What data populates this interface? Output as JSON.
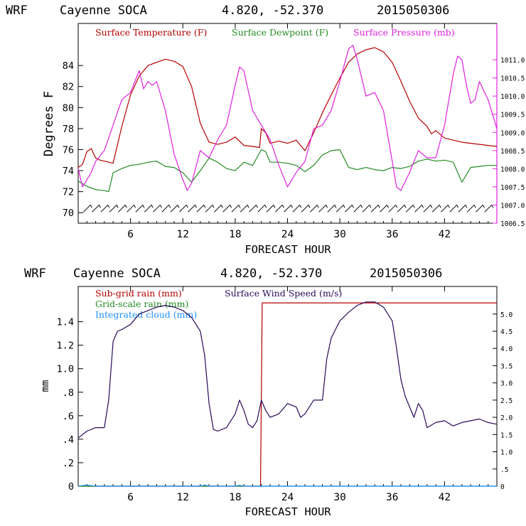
{
  "colors": {
    "temperature": "#b40000",
    "dewpoint": "#228b22",
    "pressure": "#e020e0",
    "subgrid_rain": "#b40000",
    "gridscale_rain": "#228b22",
    "integrated_cloud": "#1e90ff",
    "wind_speed": "#2a0a5a",
    "axis": "#000000"
  },
  "chart_data": [
    {
      "type": "line",
      "header": {
        "model": "WRF",
        "station": "Cayenne SOCA",
        "coords": "4.820, -52.370",
        "run": "2015050306"
      },
      "xlabel": "FORECAST HOUR",
      "ylabel": "Degrees F",
      "xlim": [
        0,
        48
      ],
      "ylim": [
        69,
        88
      ],
      "y2lim": [
        1006.5,
        1012.0
      ],
      "x_ticks": [
        6,
        12,
        18,
        24,
        30,
        36,
        42
      ],
      "x_tick_labels": [
        "6",
        "12",
        "18",
        "24",
        "30",
        "36",
        "42"
      ],
      "y_ticks": [
        70,
        72,
        74,
        76,
        78,
        80,
        82,
        84
      ],
      "y_tick_labels": [
        "70",
        "72",
        "74",
        "76",
        "78",
        "80",
        "82",
        "84"
      ],
      "y2_ticks": [
        1006.5,
        1007.0,
        1007.5,
        1008.0,
        1008.5,
        1009.0,
        1009.5,
        1010.0,
        1010.5,
        1011.0
      ],
      "y2_tick_labels": [
        "1006.5",
        "1007.0",
        "1007.5",
        "1008.0",
        "1008.5",
        "1009.0",
        "1009.5",
        "1010.0",
        "1010.5",
        "1011.0"
      ],
      "legend": [
        {
          "label": "Surface Temperature (F)",
          "color_key": "temperature"
        },
        {
          "label": "Surface Dewpoint (F)",
          "color_key": "dewpoint"
        },
        {
          "label": "Surface Pressure (mb)",
          "color_key": "pressure"
        }
      ],
      "series": [
        {
          "name": "Surface Temperature (F)",
          "axis": "left",
          "color_key": "temperature",
          "x": [
            0,
            0.5,
            1,
            1.5,
            2,
            2.5,
            3,
            4,
            5,
            6,
            7,
            8,
            9,
            10,
            11,
            12,
            13,
            14,
            15,
            16,
            17,
            18,
            19,
            20,
            20.8,
            21,
            21.5,
            22,
            23,
            24,
            25,
            26,
            27,
            28,
            29,
            30,
            31,
            32,
            33,
            34,
            35,
            36,
            37,
            38,
            39,
            40,
            40.5,
            41,
            42,
            43,
            44,
            45,
            46,
            47,
            48
          ],
          "y": [
            74.3,
            74.6,
            75.8,
            76.1,
            75.2,
            75.0,
            74.9,
            74.7,
            78.2,
            81.2,
            83.0,
            84.0,
            84.3,
            84.6,
            84.4,
            83.9,
            82.0,
            78.5,
            76.7,
            76.5,
            76.7,
            77.2,
            76.4,
            76.3,
            76.2,
            78.0,
            77.6,
            76.6,
            76.8,
            76.6,
            76.9,
            75.9,
            77.6,
            79.5,
            81.2,
            82.8,
            84.3,
            85.1,
            85.5,
            85.7,
            85.3,
            84.3,
            82.5,
            80.6,
            79.0,
            78.2,
            77.5,
            77.8,
            77.1,
            76.9,
            76.7,
            76.6,
            76.5,
            76.4,
            76.3
          ]
        },
        {
          "name": "Surface Dewpoint (F)",
          "axis": "left",
          "color_key": "dewpoint",
          "x": [
            0,
            1,
            2,
            3,
            3.5,
            4,
            5,
            6,
            7,
            8,
            9,
            10,
            11,
            12,
            13,
            14,
            15,
            16,
            17,
            18,
            19,
            20,
            21,
            21.5,
            22,
            23,
            24,
            25,
            26,
            27,
            28,
            29,
            30,
            31,
            32,
            33,
            34,
            35,
            36,
            37,
            38,
            39,
            40,
            41,
            42,
            43,
            44,
            45,
            46,
            47,
            48
          ],
          "y": [
            73.0,
            72.5,
            72.2,
            72.1,
            72.0,
            73.8,
            74.2,
            74.5,
            74.6,
            74.8,
            74.9,
            74.4,
            74.3,
            73.8,
            72.9,
            74.0,
            75.2,
            74.8,
            74.2,
            74.0,
            74.8,
            74.5,
            76.0,
            75.8,
            74.8,
            74.8,
            74.7,
            74.5,
            73.9,
            74.5,
            75.5,
            75.9,
            76.0,
            74.3,
            74.1,
            74.3,
            74.1,
            74.0,
            74.3,
            74.2,
            74.4,
            74.9,
            75.1,
            74.9,
            75.0,
            74.8,
            72.9,
            74.3,
            74.4,
            74.5,
            74.5
          ]
        },
        {
          "name": "Surface Pressure (mb)",
          "axis": "right",
          "color_key": "pressure",
          "x": [
            0,
            0.5,
            1,
            1.5,
            2,
            3,
            4,
            5,
            6,
            7,
            7.5,
            8,
            8.5,
            9,
            10,
            11,
            12,
            12.5,
            13,
            14,
            15,
            16,
            17,
            18,
            18.5,
            19,
            20,
            21,
            22,
            23,
            24,
            25,
            26,
            27,
            28,
            29,
            29.5,
            30,
            31,
            31.5,
            32,
            33,
            34,
            35,
            36,
            36.5,
            37,
            38,
            39,
            40,
            41,
            42,
            43,
            43.5,
            44,
            44.5,
            45,
            45.5,
            46,
            47,
            48
          ],
          "y": [
            1008.0,
            1007.5,
            1007.7,
            1007.9,
            1008.2,
            1008.5,
            1009.2,
            1009.9,
            1010.1,
            1010.7,
            1010.2,
            1010.4,
            1010.3,
            1010.4,
            1009.6,
            1008.4,
            1007.7,
            1007.4,
            1007.6,
            1008.5,
            1008.3,
            1008.8,
            1009.2,
            1010.3,
            1010.8,
            1010.7,
            1009.6,
            1009.2,
            1008.8,
            1008.1,
            1007.5,
            1007.9,
            1008.2,
            1009.1,
            1009.2,
            1009.6,
            1010.0,
            1010.4,
            1011.3,
            1011.4,
            1011.0,
            1010.0,
            1010.1,
            1009.6,
            1008.2,
            1007.5,
            1007.4,
            1007.9,
            1008.5,
            1008.3,
            1008.3,
            1009.2,
            1010.6,
            1011.1,
            1011.0,
            1010.3,
            1009.8,
            1009.9,
            1010.4,
            1009.9,
            1009.1
          ]
        },
        {
          "name": "Wind barbs",
          "axis": "none",
          "color_key": "axis",
          "marker": "barb",
          "y_row": 70.4,
          "x": [
            1,
            2,
            3,
            4,
            5,
            6,
            7,
            8,
            9,
            10,
            11,
            12,
            13,
            14,
            15,
            16,
            17,
            18,
            19,
            20,
            21,
            22,
            23,
            24,
            25,
            26,
            27,
            28,
            29,
            30,
            31,
            32,
            33,
            34,
            35,
            36,
            37,
            38,
            39,
            40,
            41,
            42,
            43,
            44,
            45,
            46,
            47
          ]
        }
      ]
    },
    {
      "type": "line",
      "header": {
        "model": "WRF",
        "station": "Cayenne SOCA",
        "coords": "4.820, -52.370",
        "run": "2015050306"
      },
      "xlabel": "FORECAST HOUR",
      "ylabel": "mm",
      "xlim": [
        0,
        48
      ],
      "ylim": [
        0,
        1.7
      ],
      "y2lim": [
        0,
        5.8
      ],
      "x_ticks": [
        6,
        12,
        18,
        24,
        30,
        36,
        42
      ],
      "x_tick_labels": [
        "6",
        "12",
        "18",
        "24",
        "30",
        "36",
        "42"
      ],
      "y_ticks": [
        0,
        0.2,
        0.4,
        0.6,
        0.8,
        1.0,
        1.2,
        1.4
      ],
      "y_tick_labels": [
        "0",
        ".2",
        ".4",
        ".6",
        ".8",
        "1.0",
        "1.2",
        "1.4"
      ],
      "y2_ticks": [
        0,
        0.5,
        1.0,
        1.5,
        2.0,
        2.5,
        3.0,
        3.5,
        4.0,
        4.5,
        5.0
      ],
      "y2_tick_labels": [
        "0",
        ".5",
        "1.0",
        "1.5",
        "2.0",
        "2.5",
        "3.0",
        "3.5",
        "4.0",
        "4.5",
        "5.0"
      ],
      "legend": [
        {
          "label": "Sub-grid rain (mm)",
          "color_key": "subgrid_rain"
        },
        {
          "label": "Grid-scale rain (mm)",
          "color_key": "gridscale_rain"
        },
        {
          "label": "Integrated cloud (mm)",
          "color_key": "integrated_cloud"
        },
        {
          "label": "Surface Wind Speed (m/s)",
          "color_key": "wind_speed"
        }
      ],
      "series": [
        {
          "name": "Sub-grid rain (mm)",
          "axis": "left",
          "color_key": "subgrid_rain",
          "x": [
            0,
            20.9,
            21.1,
            48
          ],
          "y": [
            0,
            0,
            1.56,
            1.56
          ]
        },
        {
          "name": "Grid-scale rain (mm)",
          "axis": "left",
          "color_key": "gridscale_rain",
          "x": [
            0,
            48
          ],
          "y": [
            0,
            0
          ]
        },
        {
          "name": "Integrated cloud (mm)",
          "axis": "left",
          "color_key": "integrated_cloud",
          "x": [
            0,
            1,
            1.5,
            2,
            14,
            14.5,
            15,
            18,
            18.5,
            19,
            48
          ],
          "y": [
            0,
            0.01,
            0.005,
            0,
            0,
            0.01,
            0,
            0,
            0.008,
            0,
            0
          ]
        },
        {
          "name": "Surface Wind Speed (m/s)",
          "axis": "right",
          "color_key": "wind_speed",
          "x": [
            0,
            1,
            2,
            3,
            3.5,
            4,
            4.5,
            5,
            6,
            7,
            8,
            9,
            10,
            11,
            12,
            13,
            14,
            14.5,
            15,
            15.5,
            16,
            17,
            18,
            18.5,
            19,
            19.5,
            20,
            20.5,
            21,
            21.5,
            22,
            23,
            24,
            25,
            25.5,
            26,
            27,
            28,
            28.5,
            29,
            30,
            31,
            32,
            33,
            34,
            35,
            36,
            36.5,
            37,
            37.5,
            38,
            38.5,
            39,
            39.5,
            40,
            41,
            42,
            43,
            44,
            45,
            46,
            47,
            48
          ],
          "y": [
            1.4,
            1.6,
            1.7,
            1.7,
            2.5,
            4.2,
            4.5,
            4.55,
            4.7,
            5.0,
            5.1,
            5.2,
            5.25,
            5.2,
            5.1,
            4.9,
            4.5,
            3.8,
            2.4,
            1.65,
            1.6,
            1.7,
            2.1,
            2.5,
            2.2,
            1.8,
            1.7,
            1.9,
            2.5,
            2.2,
            2.0,
            2.1,
            2.4,
            2.3,
            2.0,
            2.1,
            2.5,
            2.5,
            3.7,
            4.3,
            4.8,
            5.05,
            5.25,
            5.35,
            5.35,
            5.2,
            4.8,
            4.0,
            3.1,
            2.6,
            2.3,
            2.0,
            2.4,
            2.2,
            1.7,
            1.85,
            1.9,
            1.75,
            1.85,
            1.9,
            1.95,
            1.85,
            1.8
          ]
        }
      ]
    }
  ]
}
